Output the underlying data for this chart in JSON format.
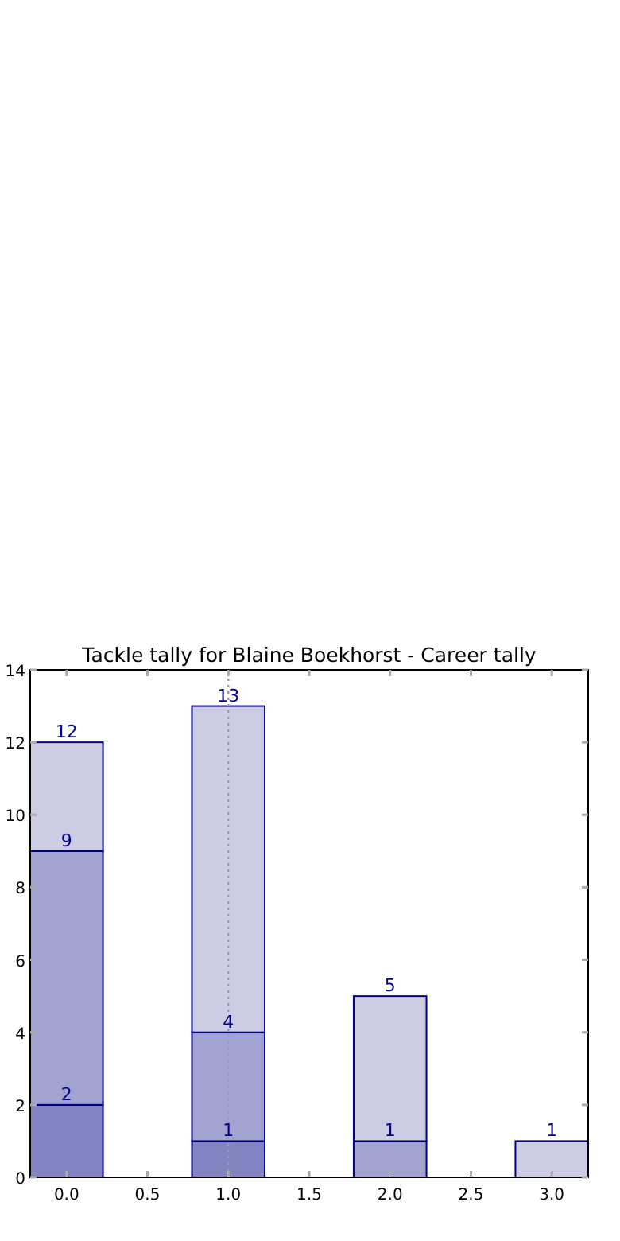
{
  "chart_data": {
    "type": "bar",
    "title": "Tackle tally for Blaine Boekhorst - Career tally",
    "x": [
      0,
      1,
      2,
      3
    ],
    "series": [
      {
        "color": "#8383c1",
        "values": [
          2,
          1,
          null,
          null
        ]
      },
      {
        "color": "#a3a3d1",
        "values": [
          7,
          3,
          1,
          null
        ]
      },
      {
        "color": "#ccccE4",
        "values": [
          3,
          9,
          4,
          1
        ]
      }
    ],
    "annotations": [
      {
        "text": "2",
        "x": 0,
        "y": 2
      },
      {
        "text": "9",
        "x": 0,
        "y": 9
      },
      {
        "text": "12",
        "x": 0,
        "y": 12
      },
      {
        "text": "1",
        "x": 1,
        "y": 1
      },
      {
        "text": "4",
        "x": 1,
        "y": 4
      },
      {
        "text": "13",
        "x": 1,
        "y": 13
      },
      {
        "text": "1",
        "x": 2,
        "y": 1
      },
      {
        "text": "5",
        "x": 2,
        "y": 5
      },
      {
        "text": "1",
        "x": 3,
        "y": 1
      }
    ],
    "stacked": true,
    "xlim": [
      -0.225,
      3.225
    ],
    "xticks": [
      {
        "value": 0,
        "label": "0.0"
      },
      {
        "value": 0.5,
        "label": "0.5"
      },
      {
        "value": 1,
        "label": "1.0"
      },
      {
        "value": 1.5,
        "label": "1.5"
      },
      {
        "value": 2,
        "label": "2.0"
      },
      {
        "value": 2.5,
        "label": "2.5"
      },
      {
        "value": 3,
        "label": "3.0"
      }
    ],
    "ylim": [
      0,
      14
    ],
    "yticks": [
      0,
      2,
      4,
      6,
      8,
      10,
      12,
      14
    ],
    "ref_lines": [
      {
        "axis": "x",
        "value": 1,
        "color": "#9a9ab8",
        "line_style": "dotted"
      }
    ]
  }
}
